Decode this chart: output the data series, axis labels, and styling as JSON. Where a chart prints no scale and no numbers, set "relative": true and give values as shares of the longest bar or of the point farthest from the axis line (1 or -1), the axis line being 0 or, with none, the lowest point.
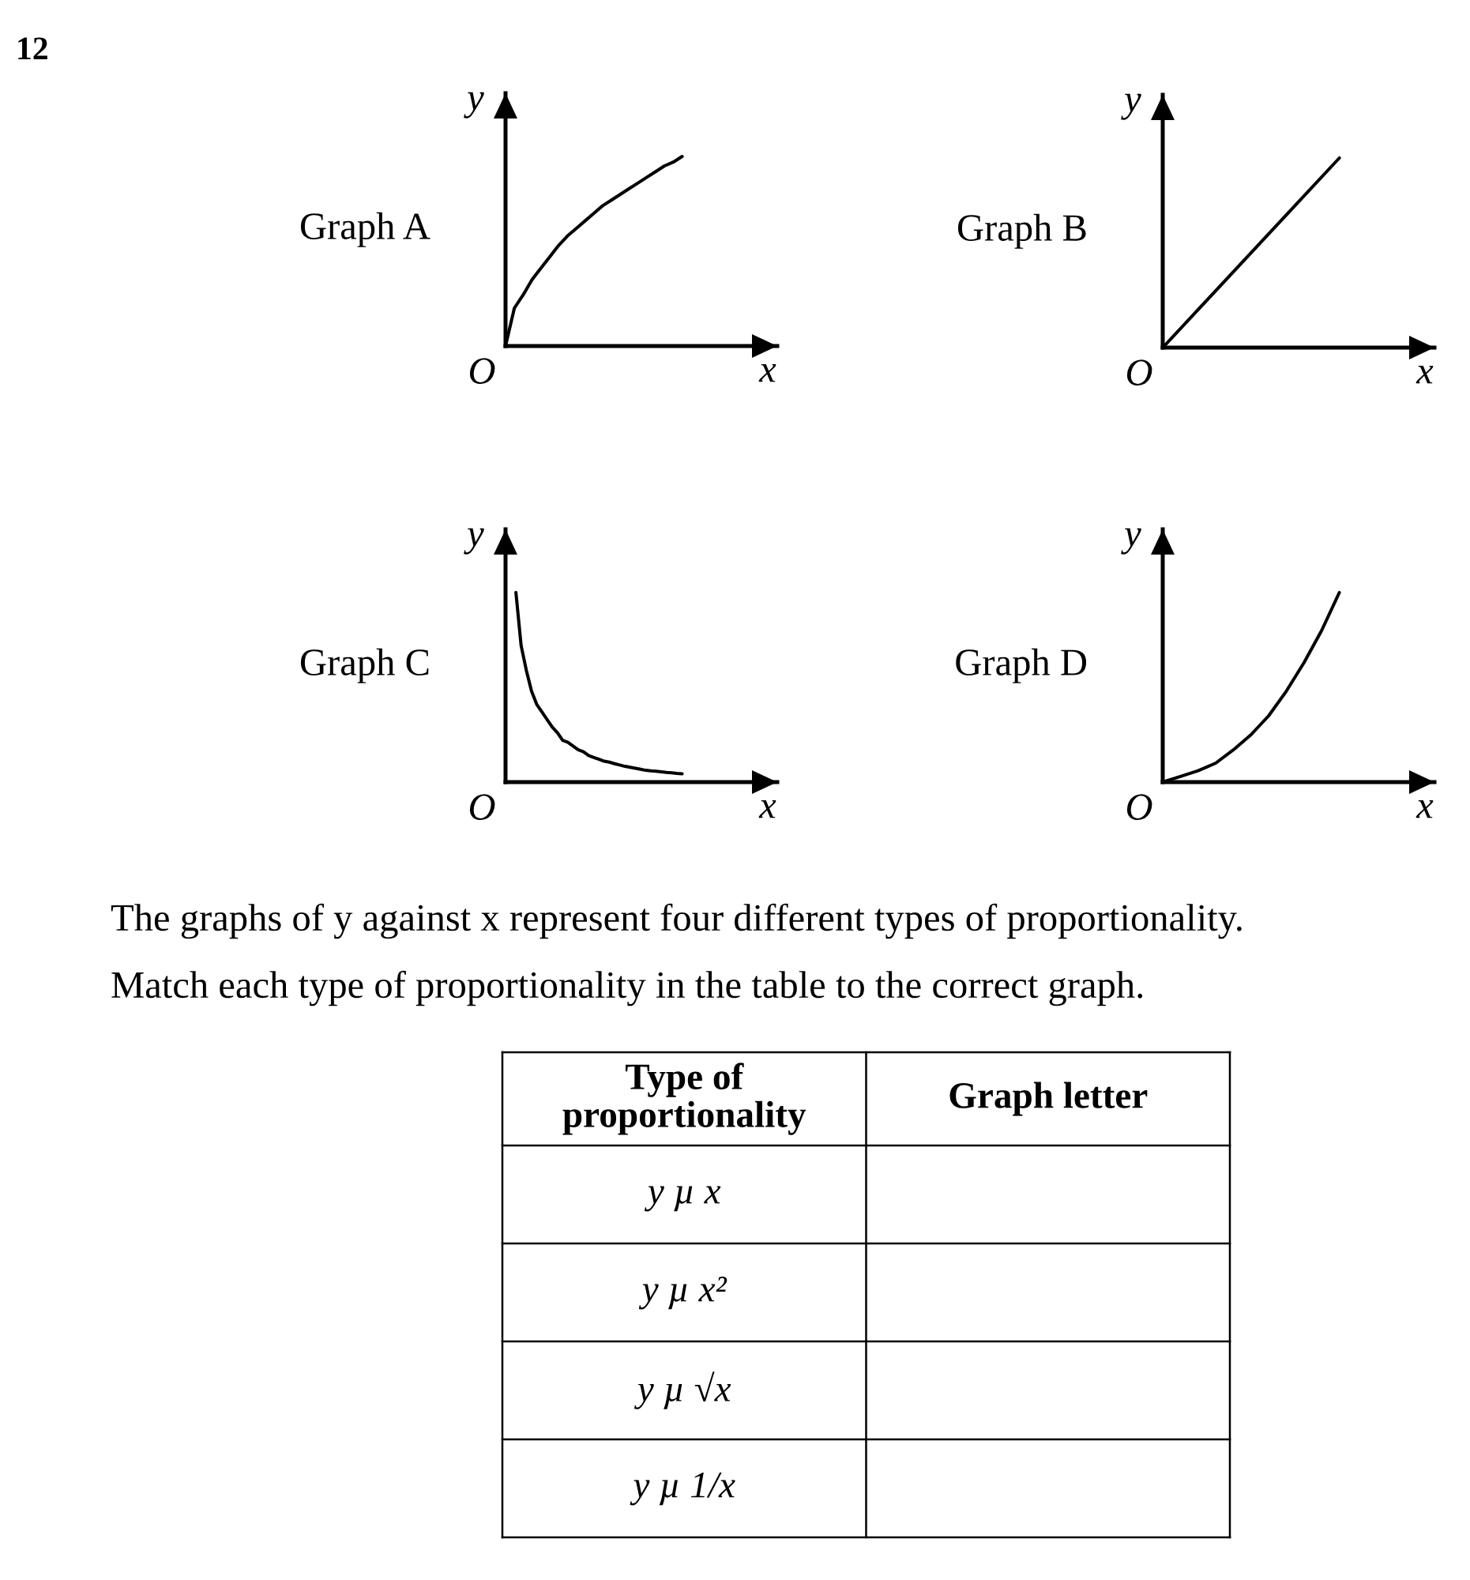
{
  "chart_data": [
    {
      "type": "other",
      "title": "12"
    },
    {
      "type": "line",
      "title": "Graph A",
      "xlabel": "x",
      "ylabel": "y",
      "annotations": [
        "O"
      ],
      "relative": true,
      "color": "#000000",
      "categories": [
        null,
        null,
        null,
        null,
        null,
        null,
        null,
        null,
        null,
        null,
        null,
        null,
        null,
        null,
        null,
        null,
        null,
        null,
        null,
        null,
        null
      ],
      "values": [
        0,
        0.2,
        0.27,
        0.35,
        0.41,
        0.47,
        0.53,
        0.58,
        0.62,
        0.66,
        0.7,
        0.74,
        0.77,
        0.8,
        0.83,
        0.86,
        0.89,
        0.92,
        0.95,
        0.97,
        1
      ]
    },
    {
      "type": "line",
      "title": "Graph B",
      "xlabel": "x",
      "ylabel": "y",
      "annotations": [
        "O"
      ],
      "relative": true,
      "color": "#000000",
      "categories": [
        null,
        null
      ],
      "values": [
        0,
        1
      ]
    },
    {
      "type": "line",
      "title": "Graph C",
      "xlabel": "x",
      "ylabel": "y",
      "annotations": [
        "O"
      ],
      "relative": true,
      "color": "#000000",
      "categories": [
        null,
        null,
        null,
        null,
        null,
        null,
        null,
        null,
        null,
        null,
        null,
        null,
        null,
        null,
        null,
        null,
        null,
        null,
        null,
        null,
        null,
        null,
        null,
        null,
        null,
        null,
        null,
        null,
        null,
        null,
        null,
        null,
        null,
        null,
        null
      ],
      "values": [
        null,
        null,
        1,
        0.72,
        0.59,
        0.48,
        0.41,
        0.37,
        0.33,
        0.29,
        0.26,
        0.22,
        0.21,
        0.19,
        0.17,
        0.16,
        0.14,
        0.13,
        0.12,
        0.11,
        0.105,
        0.097,
        0.09,
        0.083,
        0.078,
        0.073,
        0.068,
        0.062,
        0.059,
        0.057,
        0.054,
        0.051,
        0.049,
        0.046,
        0.044
      ]
    },
    {
      "type": "line",
      "title": "Graph D",
      "xlabel": "x",
      "ylabel": "y",
      "annotations": [
        "O"
      ],
      "relative": true,
      "color": "#000000",
      "categories": [
        null,
        null,
        null,
        null,
        null,
        null,
        null,
        null,
        null,
        null,
        null
      ],
      "values": [
        0,
        0.03,
        0.06,
        0.1,
        0.17,
        0.25,
        0.35,
        0.48,
        0.63,
        0.8,
        1
      ]
    },
    {
      "type": "other",
      "annotations": [
        "The graphs of y against x represent four different types of proportionality.",
        "Match each type of proportionality in the table to the correct graph."
      ],
      "categories": [
        "Type of\nproportionality",
        "Graph letter"
      ],
      "y_categories": [
        "y µ x",
        "y µ x²",
        "y µ √x",
        "y µ 1/x"
      ]
    }
  ]
}
